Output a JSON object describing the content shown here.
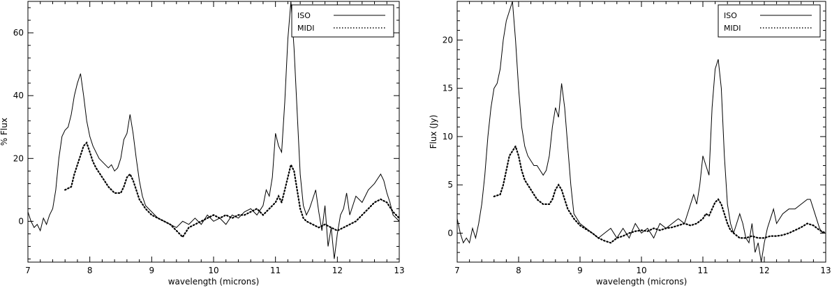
{
  "chart_data": [
    {
      "type": "line",
      "xlabel": "wavelength (microns)",
      "ylabel": "% Flux",
      "xlim": [
        7,
        13
      ],
      "ylim": [
        -13,
        70
      ],
      "xticks": [
        7,
        8,
        9,
        10,
        11,
        12,
        13
      ],
      "yticks": [
        0,
        20,
        40,
        60
      ],
      "grid": false,
      "legend": "top-right",
      "series": [
        {
          "name": "ISO",
          "style": "solid",
          "x": [
            7.0,
            7.05,
            7.1,
            7.15,
            7.2,
            7.25,
            7.3,
            7.35,
            7.4,
            7.45,
            7.5,
            7.55,
            7.6,
            7.65,
            7.7,
            7.75,
            7.8,
            7.85,
            7.9,
            7.95,
            8.0,
            8.05,
            8.1,
            8.15,
            8.2,
            8.25,
            8.3,
            8.35,
            8.4,
            8.45,
            8.5,
            8.55,
            8.6,
            8.65,
            8.7,
            8.75,
            8.8,
            8.85,
            8.9,
            9.0,
            9.1,
            9.2,
            9.3,
            9.4,
            9.5,
            9.6,
            9.7,
            9.8,
            9.9,
            10.0,
            10.1,
            10.2,
            10.3,
            10.4,
            10.5,
            10.6,
            10.7,
            10.8,
            10.85,
            10.9,
            10.95,
            11.0,
            11.05,
            11.1,
            11.15,
            11.2,
            11.25,
            11.3,
            11.35,
            11.4,
            11.45,
            11.5,
            11.55,
            11.6,
            11.65,
            11.7,
            11.75,
            11.8,
            11.85,
            11.9,
            11.95,
            12.0,
            12.05,
            12.1,
            12.15,
            12.2,
            12.3,
            12.4,
            12.5,
            12.6,
            12.7,
            12.75,
            12.8,
            12.85,
            12.9,
            12.95,
            13.0
          ],
          "y": [
            3,
            0,
            -2,
            -1,
            -3,
            1,
            -1,
            2,
            4,
            10,
            20,
            27,
            29,
            30,
            34,
            40,
            44,
            47,
            40,
            32,
            27,
            24,
            22,
            20,
            19,
            18,
            17,
            18,
            16,
            17,
            20,
            26,
            28,
            34,
            28,
            20,
            13,
            8,
            5,
            3,
            1,
            0,
            -1,
            -2,
            0,
            -1,
            1,
            -1,
            2,
            0,
            1,
            -1,
            2,
            1,
            3,
            4,
            2,
            5,
            10,
            8,
            14,
            28,
            24,
            22,
            38,
            58,
            70,
            55,
            35,
            15,
            5,
            2,
            4,
            7,
            10,
            3,
            -3,
            5,
            -8,
            -2,
            -12,
            -4,
            2,
            4,
            9,
            2,
            8,
            6,
            10,
            12,
            15,
            13,
            9,
            6,
            2,
            1,
            0
          ]
        },
        {
          "name": "MIDI",
          "style": "dotted",
          "x": [
            7.6,
            7.7,
            7.75,
            7.8,
            7.85,
            7.9,
            7.95,
            8.0,
            8.05,
            8.1,
            8.2,
            8.3,
            8.4,
            8.5,
            8.55,
            8.6,
            8.65,
            8.7,
            8.75,
            8.8,
            8.9,
            9.0,
            9.1,
            9.2,
            9.3,
            9.4,
            9.5,
            9.6,
            9.7,
            9.8,
            9.9,
            10.0,
            10.1,
            10.2,
            10.3,
            10.4,
            10.5,
            10.6,
            10.7,
            10.8,
            10.9,
            11.0,
            11.05,
            11.1,
            11.15,
            11.2,
            11.25,
            11.3,
            11.35,
            11.4,
            11.45,
            11.5,
            11.6,
            11.7,
            11.8,
            11.9,
            12.0,
            12.1,
            12.2,
            12.3,
            12.4,
            12.5,
            12.6,
            12.7,
            12.8,
            12.9,
            13.0
          ],
          "y": [
            10,
            11,
            15,
            18,
            21,
            24,
            25,
            22,
            19,
            17,
            14,
            11,
            9,
            9,
            11,
            14,
            15,
            13,
            10,
            7,
            4,
            2,
            1,
            0,
            -1,
            -3,
            -5,
            -2,
            -1,
            0,
            1,
            2,
            1,
            2,
            1,
            2,
            2,
            3,
            4,
            2,
            4,
            6,
            8,
            6,
            10,
            14,
            18,
            16,
            10,
            4,
            1,
            0,
            -1,
            -2,
            -1,
            -2,
            -3,
            -2,
            -1,
            0,
            2,
            4,
            6,
            7,
            6,
            3,
            1
          ]
        }
      ]
    },
    {
      "type": "line",
      "xlabel": "wavelength (microns)",
      "ylabel": "Flux (Jy)",
      "xlim": [
        7,
        13
      ],
      "ylim": [
        -3,
        24
      ],
      "xticks": [
        7,
        8,
        9,
        10,
        11,
        12,
        13
      ],
      "yticks": [
        0,
        5,
        10,
        15,
        20
      ],
      "grid": false,
      "legend": "top-right",
      "series": [
        {
          "name": "ISO",
          "style": "solid",
          "x": [
            7.0,
            7.05,
            7.1,
            7.15,
            7.2,
            7.25,
            7.3,
            7.35,
            7.4,
            7.45,
            7.5,
            7.55,
            7.6,
            7.65,
            7.7,
            7.75,
            7.8,
            7.85,
            7.9,
            7.95,
            8.0,
            8.05,
            8.1,
            8.15,
            8.2,
            8.25,
            8.3,
            8.35,
            8.4,
            8.45,
            8.5,
            8.55,
            8.6,
            8.65,
            8.7,
            8.75,
            8.8,
            8.85,
            8.9,
            9.0,
            9.1,
            9.2,
            9.3,
            9.4,
            9.5,
            9.6,
            9.7,
            9.8,
            9.9,
            10.0,
            10.1,
            10.2,
            10.3,
            10.4,
            10.5,
            10.6,
            10.7,
            10.8,
            10.85,
            10.9,
            10.95,
            11.0,
            11.05,
            11.1,
            11.15,
            11.2,
            11.25,
            11.3,
            11.35,
            11.4,
            11.45,
            11.5,
            11.55,
            11.6,
            11.65,
            11.7,
            11.75,
            11.8,
            11.85,
            11.9,
            11.95,
            12.0,
            12.05,
            12.1,
            12.15,
            12.2,
            12.3,
            12.4,
            12.5,
            12.6,
            12.7,
            12.75,
            12.8,
            12.85,
            12.9,
            12.95,
            13.0
          ],
          "y": [
            1.5,
            0,
            -1,
            -0.5,
            -1,
            0.5,
            -0.5,
            1,
            3,
            6,
            10,
            13,
            15,
            15.5,
            17,
            20,
            22,
            23,
            24,
            20,
            15,
            11,
            9,
            8,
            7.5,
            7,
            7,
            6.5,
            6,
            6.5,
            8,
            11,
            13,
            12,
            15.5,
            13,
            9,
            5,
            2,
            1,
            0.5,
            0,
            -0.5,
            0,
            0.5,
            -0.5,
            0.5,
            -0.5,
            1,
            0,
            0.5,
            -0.5,
            1,
            0.5,
            1,
            1.5,
            1,
            3,
            4,
            3,
            5,
            8,
            7,
            6,
            13,
            17,
            18,
            15,
            8,
            3,
            1,
            0,
            1,
            2,
            1,
            -0.5,
            -1,
            1,
            -2,
            -1,
            -3,
            -1,
            0.5,
            1.5,
            2.5,
            1,
            2,
            2.5,
            2.5,
            3,
            3.5,
            3.5,
            2.5,
            1.5,
            0.5,
            0,
            0
          ]
        },
        {
          "name": "MIDI",
          "style": "dotted",
          "x": [
            7.6,
            7.7,
            7.75,
            7.8,
            7.85,
            7.9,
            7.95,
            8.0,
            8.05,
            8.1,
            8.2,
            8.3,
            8.4,
            8.5,
            8.55,
            8.6,
            8.65,
            8.7,
            8.75,
            8.8,
            8.9,
            9.0,
            9.1,
            9.2,
            9.3,
            9.4,
            9.5,
            9.6,
            9.7,
            9.8,
            9.9,
            10.0,
            10.1,
            10.2,
            10.3,
            10.4,
            10.5,
            10.6,
            10.7,
            10.8,
            10.9,
            11.0,
            11.05,
            11.1,
            11.15,
            11.2,
            11.25,
            11.3,
            11.35,
            11.4,
            11.45,
            11.5,
            11.6,
            11.7,
            11.8,
            11.9,
            12.0,
            12.1,
            12.2,
            12.3,
            12.4,
            12.5,
            12.6,
            12.7,
            12.8,
            12.9,
            13.0
          ],
          "y": [
            3.8,
            4,
            5,
            6.5,
            8,
            8.5,
            9,
            8,
            6.5,
            5.5,
            4.5,
            3.5,
            3,
            3,
            3.5,
            4.5,
            5,
            4.5,
            3.5,
            2.5,
            1.5,
            0.8,
            0.4,
            0,
            -0.5,
            -0.8,
            -1,
            -0.5,
            -0.3,
            0,
            0.2,
            0.3,
            0.2,
            0.5,
            0.3,
            0.5,
            0.6,
            0.8,
            1,
            0.8,
            1,
            1.5,
            2,
            1.8,
            2.5,
            3.2,
            3.5,
            3,
            2,
            1,
            0.3,
            0,
            -0.5,
            -0.5,
            -0.3,
            -0.5,
            -0.5,
            -0.3,
            -0.3,
            -0.2,
            0,
            0.3,
            0.6,
            1,
            0.8,
            0.3,
            0
          ]
        }
      ]
    }
  ]
}
